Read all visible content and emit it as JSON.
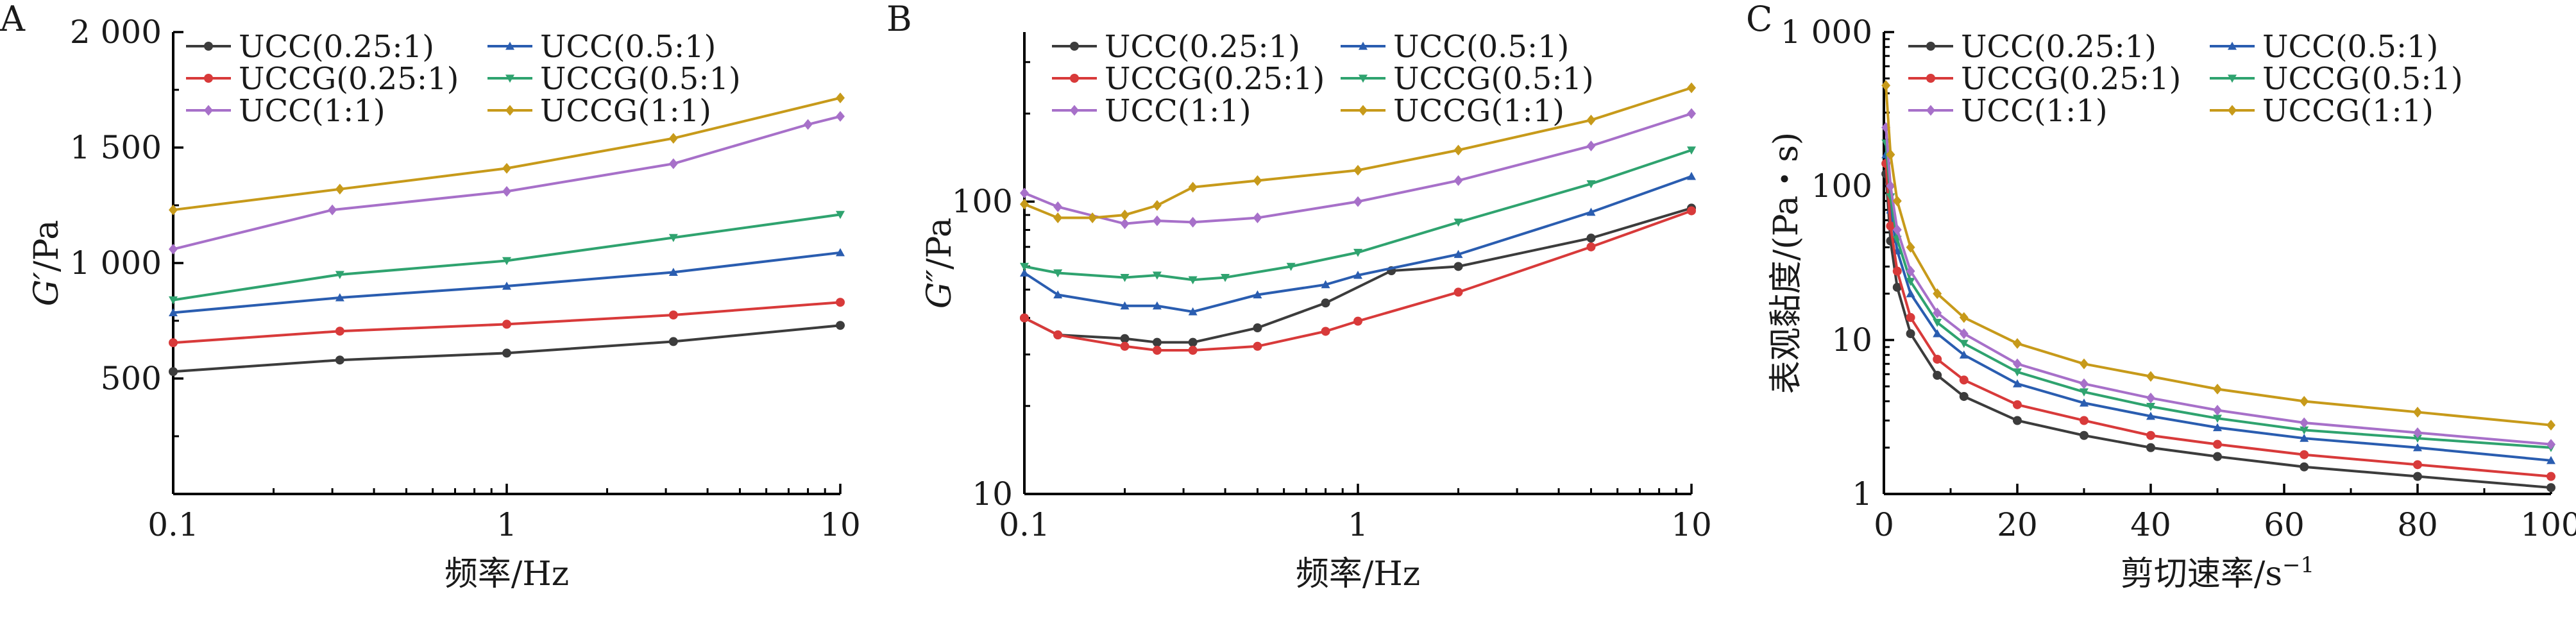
{
  "figure": {
    "colors": {
      "black": "#3c3c3c",
      "blue": "#2a5db0",
      "red": "#d83a3a",
      "green": "#2fa36f",
      "purple": "#a770c9",
      "gold": "#c79a1a"
    }
  },
  "chart_data": [
    {
      "type": "line",
      "panel": "A",
      "xscale": "log",
      "yscale": "linear",
      "xlim": [
        0.1,
        10
      ],
      "ylim": [
        0,
        2000
      ],
      "xticks": [
        0.1,
        1,
        10
      ],
      "xtick_labels": [
        "0.1",
        "1",
        "10"
      ],
      "yticks": [
        500,
        1000,
        1500,
        2000
      ],
      "ytick_labels": [
        "500",
        "1 000",
        "1 500",
        "2 000"
      ],
      "xlabel": "频率/Hz",
      "ylabel_italic": "G′",
      "ylabel_unit": "/Pa",
      "legend_position": "top-left",
      "legend_columns": 2,
      "series": [
        {
          "name": "UCC(0.25:1)",
          "color": "#3c3c3c",
          "marker": "circle",
          "x": [
            0.1,
            0.316,
            1,
            3.16,
            10
          ],
          "y": [
            530,
            580,
            610,
            660,
            730
          ]
        },
        {
          "name": "UCC(0.5:1)",
          "color": "#2a5db0",
          "marker": "triangle",
          "x": [
            0.1,
            0.316,
            1,
            3.16,
            10
          ],
          "y": [
            785,
            850,
            900,
            960,
            1045
          ]
        },
        {
          "name": "UCCG(0.25:1)",
          "color": "#d83a3a",
          "marker": "circle",
          "x": [
            0.1,
            0.316,
            1,
            3.16,
            10
          ],
          "y": [
            655,
            705,
            735,
            775,
            830
          ]
        },
        {
          "name": "UCCG(0.5:1)",
          "color": "#2fa36f",
          "marker": "triangle-down",
          "x": [
            0.1,
            0.316,
            1,
            3.16,
            10
          ],
          "y": [
            840,
            950,
            1010,
            1110,
            1210
          ]
        },
        {
          "name": "UCC(1:1)",
          "color": "#a770c9",
          "marker": "diamond",
          "x": [
            0.1,
            0.3,
            1,
            3.16,
            8,
            10
          ],
          "y": [
            1060,
            1230,
            1310,
            1430,
            1600,
            1635
          ]
        },
        {
          "name": "UCCG(1:1)",
          "color": "#c79a1a",
          "marker": "diamond",
          "x": [
            0.1,
            0.316,
            1,
            3.16,
            10
          ],
          "y": [
            1230,
            1320,
            1410,
            1540,
            1715
          ]
        }
      ]
    },
    {
      "type": "line",
      "panel": "B",
      "xscale": "log",
      "yscale": "log",
      "xlim": [
        0.1,
        10
      ],
      "ylim": [
        10,
        380
      ],
      "xticks": [
        0.1,
        1,
        10
      ],
      "xtick_labels": [
        "0.1",
        "1",
        "10"
      ],
      "yticks": [
        10,
        100
      ],
      "ytick_labels": [
        "10",
        "100"
      ],
      "xlabel": "频率/Hz",
      "ylabel_italic": "G″",
      "ylabel_unit": "/Pa",
      "legend_position": "top-left",
      "legend_columns": 2,
      "series": [
        {
          "name": "UCC(0.25:1)",
          "color": "#3c3c3c",
          "marker": "circle",
          "x": [
            0.1,
            0.126,
            0.2,
            0.25,
            0.32,
            0.5,
            0.8,
            1.26,
            2,
            5,
            10
          ],
          "y": [
            40,
            35,
            34,
            33,
            33,
            37,
            45,
            58,
            60,
            75,
            95
          ]
        },
        {
          "name": "UCC(0.5:1)",
          "color": "#2a5db0",
          "marker": "triangle",
          "x": [
            0.1,
            0.126,
            0.2,
            0.25,
            0.32,
            0.5,
            0.8,
            1,
            2,
            5,
            10
          ],
          "y": [
            57,
            48,
            44,
            44,
            42,
            48,
            52,
            56,
            66,
            92,
            122
          ]
        },
        {
          "name": "UCCG(0.25:1)",
          "color": "#d83a3a",
          "marker": "circle",
          "x": [
            0.1,
            0.126,
            0.2,
            0.25,
            0.32,
            0.5,
            0.8,
            1,
            2,
            5,
            10
          ],
          "y": [
            40,
            35,
            32,
            31,
            31,
            32,
            36,
            39,
            49,
            70,
            93
          ]
        },
        {
          "name": "UCCG(0.5:1)",
          "color": "#2fa36f",
          "marker": "triangle-down",
          "x": [
            0.1,
            0.126,
            0.2,
            0.25,
            0.32,
            0.4,
            0.63,
            1,
            2,
            5,
            10
          ],
          "y": [
            60,
            57,
            55,
            56,
            54,
            55,
            60,
            67,
            85,
            115,
            150
          ]
        },
        {
          "name": "UCC(1:1)",
          "color": "#a770c9",
          "marker": "diamond",
          "x": [
            0.1,
            0.126,
            0.2,
            0.25,
            0.32,
            0.5,
            1,
            2,
            5,
            10
          ],
          "y": [
            107,
            96,
            84,
            86,
            85,
            88,
            100,
            118,
            155,
            200
          ]
        },
        {
          "name": "UCCG(1:1)",
          "color": "#c79a1a",
          "marker": "diamond",
          "x": [
            0.1,
            0.126,
            0.16,
            0.2,
            0.25,
            0.32,
            0.5,
            1,
            2,
            5,
            10
          ],
          "y": [
            98,
            88,
            88,
            90,
            97,
            112,
            118,
            128,
            150,
            190,
            245
          ]
        }
      ]
    },
    {
      "type": "line",
      "panel": "C",
      "xscale": "linear",
      "yscale": "log",
      "xlim": [
        0,
        100
      ],
      "ylim": [
        1,
        1000
      ],
      "xticks": [
        0,
        20,
        40,
        60,
        80,
        100
      ],
      "xtick_labels": [
        "0",
        "20",
        "40",
        "60",
        "80",
        "100"
      ],
      "yticks": [
        1,
        10,
        100,
        1000
      ],
      "ytick_labels": [
        "1",
        "10",
        "100",
        "1 000"
      ],
      "xlabel": "剪切速率/s",
      "xlabel_superscript": "−1",
      "ylabel": "表观黏度/(Pa・s)",
      "legend_position": "top-right",
      "legend_columns": 2,
      "series": [
        {
          "name": "UCC(0.25:1)",
          "color": "#3c3c3c",
          "marker": "circle",
          "x": [
            0.3,
            1,
            2,
            4,
            8,
            12,
            20,
            30,
            40,
            50,
            63,
            80,
            100
          ],
          "y": [
            120,
            44,
            22,
            11,
            5.9,
            4.3,
            3.0,
            2.4,
            2.0,
            1.75,
            1.5,
            1.3,
            1.1
          ]
        },
        {
          "name": "UCC(0.5:1)",
          "color": "#2a5db0",
          "marker": "triangle",
          "x": [
            0.3,
            1,
            2,
            4,
            8,
            12,
            20,
            30,
            40,
            50,
            63,
            80,
            100
          ],
          "y": [
            160,
            70,
            38,
            20,
            11,
            8,
            5.2,
            3.9,
            3.2,
            2.7,
            2.3,
            2.0,
            1.65
          ]
        },
        {
          "name": "UCCG(0.25:1)",
          "color": "#d83a3a",
          "marker": "circle",
          "x": [
            0.3,
            1,
            2,
            4,
            8,
            12,
            20,
            30,
            40,
            50,
            63,
            80,
            100
          ],
          "y": [
            140,
            55,
            28,
            14,
            7.5,
            5.5,
            3.8,
            3.0,
            2.4,
            2.1,
            1.8,
            1.55,
            1.3
          ]
        },
        {
          "name": "UCCG(0.5:1)",
          "color": "#2fa36f",
          "marker": "triangle-down",
          "x": [
            0.3,
            1,
            2,
            4,
            8,
            12,
            20,
            30,
            40,
            50,
            63,
            80,
            100
          ],
          "y": [
            190,
            85,
            45,
            24,
            13,
            9.5,
            6.2,
            4.6,
            3.7,
            3.1,
            2.6,
            2.3,
            2.0
          ]
        },
        {
          "name": "UCC(1:1)",
          "color": "#a770c9",
          "marker": "diamond",
          "x": [
            0.3,
            1,
            2,
            4,
            8,
            12,
            20,
            30,
            40,
            50,
            63,
            80,
            100
          ],
          "y": [
            240,
            100,
            52,
            28,
            15,
            11,
            7,
            5.2,
            4.2,
            3.5,
            2.9,
            2.5,
            2.1
          ]
        },
        {
          "name": "UCCG(1:1)",
          "color": "#c79a1a",
          "marker": "diamond",
          "x": [
            0.3,
            1,
            2,
            4,
            8,
            12,
            20,
            30,
            40,
            50,
            63,
            80,
            100
          ],
          "y": [
            450,
            160,
            80,
            40,
            20,
            14,
            9.5,
            7,
            5.8,
            4.8,
            4.0,
            3.4,
            2.8
          ]
        }
      ]
    }
  ]
}
